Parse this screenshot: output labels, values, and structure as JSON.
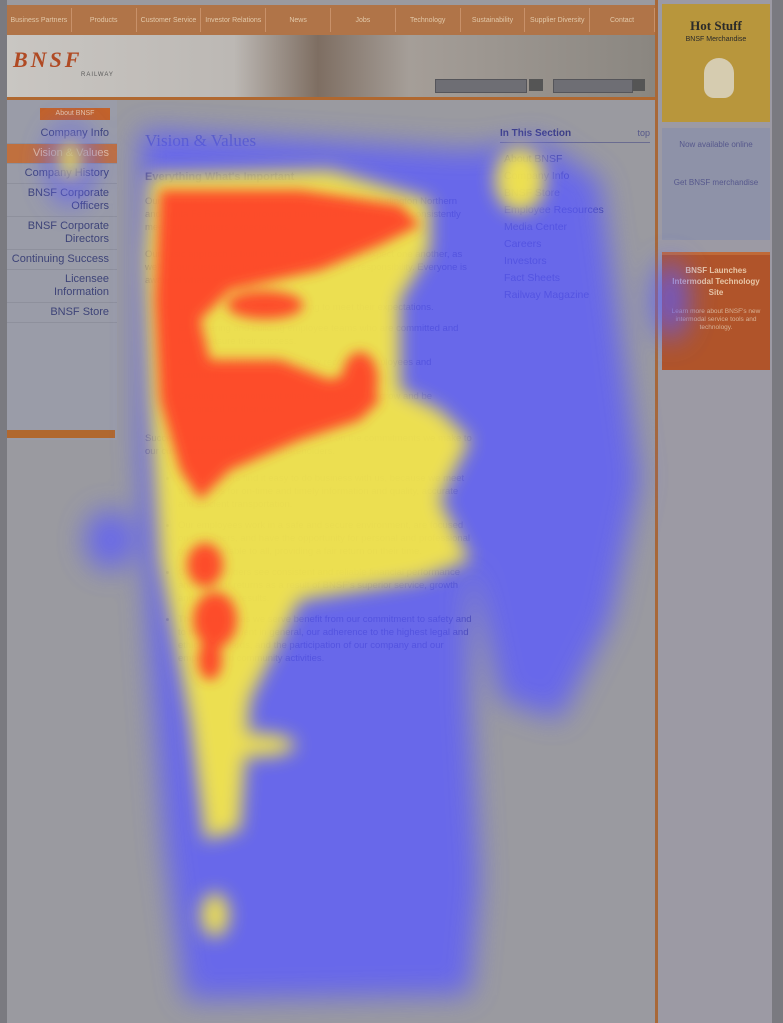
{
  "topnav": {
    "items": [
      "Business Partners",
      "Products",
      "Customer Service",
      "Investor Relations",
      "News",
      "Jobs",
      "Technology",
      "Sustainability",
      "Supplier Diversity",
      "Contact"
    ]
  },
  "header": {
    "logo": "BNSF",
    "logo_sub": "RAILWAY"
  },
  "leftnav": {
    "heading": "About BNSF",
    "items": [
      {
        "label": "Company Info",
        "active": false
      },
      {
        "label": "Vision & Values",
        "active": true
      },
      {
        "label": "Company History",
        "active": false
      },
      {
        "label": "BNSF Corporate Officers",
        "active": false
      },
      {
        "label": "BNSF Corporate Directors",
        "active": false
      },
      {
        "label": "Continuing Success",
        "active": false
      },
      {
        "label": "Licensee Information",
        "active": false
      },
      {
        "label": "BNSF Store",
        "active": false
      }
    ]
  },
  "main": {
    "title": "Vision & Values",
    "subtitle": "Everything What's Important",
    "paragraphs": [
      "Our vision is to realize the tremendous potential of the Burlington Northern and Santa Fe Railway by providing transportation services that consistently meet our customers' expectations.",
      "Our basic approach is built on trust and respect. We expect one another, as well as our customers, to work together and share responsibility. Everyone is aware of what's expected."
    ],
    "list1": [
      "Listening to customers and acting to meet their expectations.",
      "Empowering and building employee teams who are committed and help measure their success.",
      "Continuously improving our safety record for employees and communities.",
      "Creating an environment where employees can grow and be recognized for their work."
    ],
    "para3": "Success is measured by our ability to deliver on the commitments we make to our customers, employees and shareholders.",
    "list2": [
      "Our customers find it easy to do business with us, because we meet their needs for on-time and timely information and quality, accurate and efficient transportation.",
      "Our employees work in a safe and secure environment, are focused on customers, and have the opportunity for personal and professional growth available to all, providing a fair return on their time.",
      "Our shareholders see consistent and reliable financial performance and superior returns as a result of BNSF's superior service, growth and operating results.",
      "The communities we serve benefit from our commitment to safety and to the environment in general, our adherence to the highest legal and ethical standards, and the participation of our company and our employees in community activities."
    ]
  },
  "section": {
    "title": "In This Section",
    "top_link": "top",
    "items": [
      "About BNSF",
      "Company Info",
      "BNSF Store",
      "Employee Resources",
      "Media Center",
      "Careers",
      "Investors",
      "Fact Sheets",
      "Railway Magazine"
    ]
  },
  "rightbar": {
    "promo_title": "Hot Stuff",
    "promo_sub": "BNSF Merchandise",
    "mid_text1": "Now available online",
    "mid_text2": "Get BNSF merchandise",
    "ad_title": "BNSF Launches Intermodal Technology Site",
    "ad_body": "Learn more about BNSF's new intermodal service tools and technology."
  },
  "colors": {
    "nav_orange": "#b07448",
    "brand_red": "#b04a24",
    "heat_red": "#ff3c28",
    "heat_yellow": "#fff03c",
    "heat_blue": "#5a5aff"
  }
}
